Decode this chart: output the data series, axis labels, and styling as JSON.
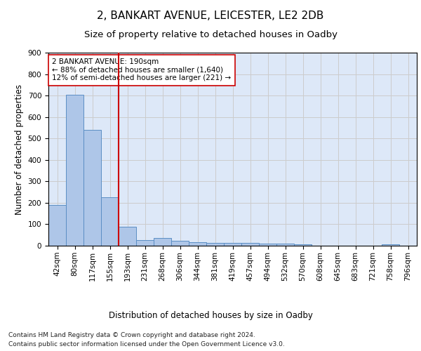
{
  "title": "2, BANKART AVENUE, LEICESTER, LE2 2DB",
  "subtitle": "Size of property relative to detached houses in Oadby",
  "xlabel": "Distribution of detached houses by size in Oadby",
  "ylabel": "Number of detached properties",
  "categories": [
    "42sqm",
    "80sqm",
    "117sqm",
    "155sqm",
    "193sqm",
    "231sqm",
    "268sqm",
    "306sqm",
    "344sqm",
    "381sqm",
    "419sqm",
    "457sqm",
    "494sqm",
    "532sqm",
    "570sqm",
    "608sqm",
    "645sqm",
    "683sqm",
    "721sqm",
    "758sqm",
    "796sqm"
  ],
  "values": [
    190,
    705,
    540,
    225,
    90,
    27,
    37,
    24,
    16,
    12,
    12,
    12,
    10,
    10,
    8,
    0,
    0,
    0,
    0,
    8,
    0
  ],
  "bar_color": "#aec6e8",
  "bar_edge_color": "#5b8ec4",
  "vline_x_index": 4,
  "vline_color": "#cc0000",
  "annotation_text": "2 BANKART AVENUE: 190sqm\n← 88% of detached houses are smaller (1,640)\n12% of semi-detached houses are larger (221) →",
  "annotation_box_color": "#ffffff",
  "annotation_box_edge": "#cc0000",
  "ylim": [
    0,
    900
  ],
  "yticks": [
    0,
    100,
    200,
    300,
    400,
    500,
    600,
    700,
    800,
    900
  ],
  "grid_color": "#cccccc",
  "background_color": "#dde8f8",
  "footer_line1": "Contains HM Land Registry data © Crown copyright and database right 2024.",
  "footer_line2": "Contains public sector information licensed under the Open Government Licence v3.0.",
  "title_fontsize": 11,
  "subtitle_fontsize": 9.5,
  "axis_label_fontsize": 8.5,
  "tick_fontsize": 7.5,
  "annotation_fontsize": 7.5,
  "footer_fontsize": 6.5
}
